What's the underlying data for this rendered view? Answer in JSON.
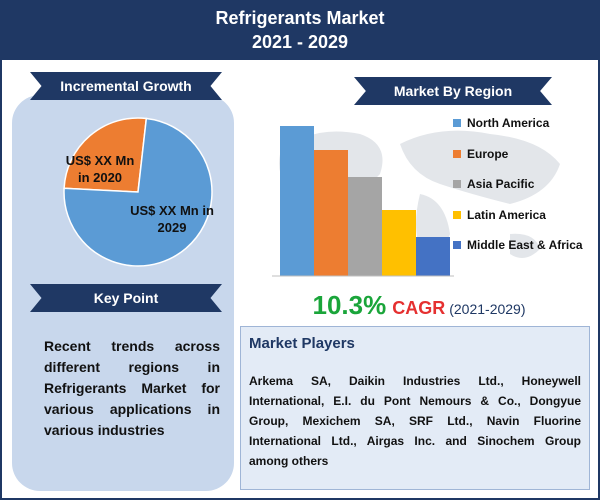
{
  "header": {
    "title_line1": "Refrigerants Market",
    "title_line2": "2021 - 2029"
  },
  "incremental_growth": {
    "heading": "Incremental Growth",
    "label_2020": "US$ XX Mn\nin 2020",
    "label_2029": "US$ XX Mn in\n2029",
    "colors": {
      "slice_2020": "#ed7d31",
      "slice_2029": "#5b9bd5"
    }
  },
  "key_point": {
    "heading": "Key Point",
    "text": "Recent trends across different regions in Refrigerants Market for various applications in various industries"
  },
  "region": {
    "heading": "Market By Region"
  },
  "cagr": {
    "value": "10.3%",
    "word": "CAGR",
    "years": "(2021-2029)"
  },
  "players": {
    "heading": "Market Players",
    "text": "Arkema SA, Daikin Industries Ltd., Honeywell International, E.I. du Pont Nemours & Co., Dongyue Group, Mexichem SA, SRF Ltd., Navin Fluorine International Ltd., Airgas Inc. and Sinochem Group among others"
  },
  "chart_data": [
    {
      "type": "pie",
      "categories": [
        "US$ XX Mn in 2020",
        "US$ XX Mn in 2029"
      ],
      "values": [
        26,
        74
      ],
      "colors": [
        "#ed7d31",
        "#5b9bd5"
      ]
    },
    {
      "type": "bar",
      "categories": [
        "North America",
        "Europe",
        "Asia Pacific",
        "Latin America",
        "Middle East & Africa"
      ],
      "values": [
        100,
        84,
        66,
        44,
        26
      ],
      "colors": [
        "#5b9bd5",
        "#ed7d31",
        "#a5a5a5",
        "#ffc000",
        "#4472c4"
      ],
      "ylim": [
        0,
        100
      ],
      "legend": "right",
      "grid": false
    }
  ]
}
